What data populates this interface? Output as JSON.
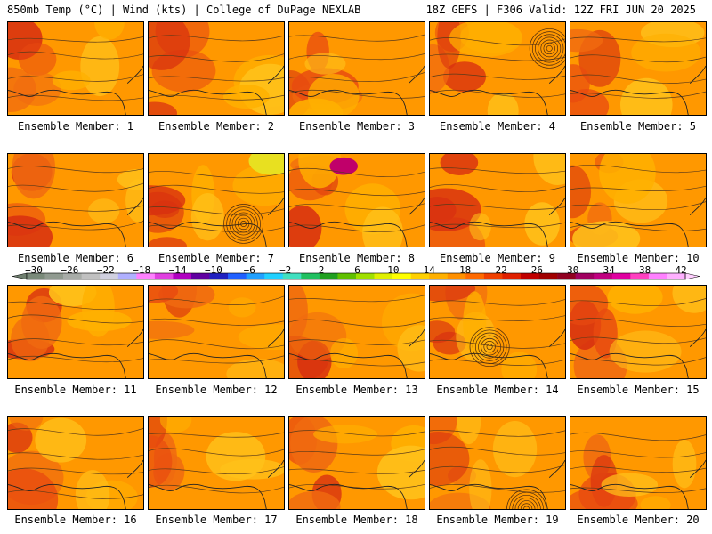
{
  "header": {
    "left": "850mb Temp (°C) | Wind (kts) | College of DuPage NEXLAB",
    "right": "18Z GEFS | F306 Valid: 12Z FRI JUN 20 2025"
  },
  "caption_prefix": "Ensemble Member: ",
  "members": [
    {
      "label": "Ensemble Member: 1",
      "number": 1,
      "low": null
    },
    {
      "label": "Ensemble Member: 2",
      "number": 2,
      "low": null
    },
    {
      "label": "Ensemble Member: 3",
      "number": 3,
      "low": null
    },
    {
      "label": "Ensemble Member: 4",
      "number": 4,
      "low": "north-east"
    },
    {
      "label": "Ensemble Member: 5",
      "number": 5,
      "low": null
    },
    {
      "label": "Ensemble Member: 6",
      "number": 6,
      "low": null
    },
    {
      "label": "Ensemble Member: 7",
      "number": 7,
      "low": "gulf"
    },
    {
      "label": "Ensemble Member: 8",
      "number": 8,
      "low": null
    },
    {
      "label": "Ensemble Member: 9",
      "number": 9,
      "low": null
    },
    {
      "label": "Ensemble Member: 10",
      "number": 10,
      "low": null
    },
    {
      "label": "Ensemble Member: 11",
      "number": 11,
      "low": null
    },
    {
      "label": "Ensemble Member: 12",
      "number": 12,
      "low": null
    },
    {
      "label": "Ensemble Member: 13",
      "number": 13,
      "low": null
    },
    {
      "label": "Ensemble Member: 14",
      "number": 14,
      "low": "central"
    },
    {
      "label": "Ensemble Member: 15",
      "number": 15,
      "low": null
    },
    {
      "label": "Ensemble Member: 16",
      "number": 16,
      "low": null
    },
    {
      "label": "Ensemble Member: 17",
      "number": 17,
      "low": null
    },
    {
      "label": "Ensemble Member: 18",
      "number": 18,
      "low": null
    },
    {
      "label": "Ensemble Member: 19",
      "number": 19,
      "low": "gulf-south"
    },
    {
      "label": "Ensemble Member: 20",
      "number": 20,
      "low": null
    }
  ],
  "colorbar": {
    "labels": [
      "−30",
      "−26",
      "−22",
      "−18",
      "−14",
      "−10",
      "−6",
      "−2",
      "2",
      "6",
      "10",
      "14",
      "18",
      "22",
      "26",
      "30",
      "34",
      "38",
      "42"
    ],
    "colors": [
      "#7a8a7a",
      "#909a90",
      "#a8aca8",
      "#c0c0c0",
      "#d0d0e0",
      "#b0b0ff",
      "#ff80ff",
      "#e040e0",
      "#b000c0",
      "#6000a0",
      "#2020c0",
      "#2060ff",
      "#20a0ff",
      "#20d0ff",
      "#40e0c0",
      "#20c060",
      "#20a020",
      "#60c000",
      "#a0e000",
      "#e0f000",
      "#ffff00",
      "#ffd000",
      "#ffb000",
      "#ff9000",
      "#ff6a00",
      "#f04000",
      "#e02000",
      "#c00000",
      "#a00000",
      "#900020",
      "#a00060",
      "#c00080",
      "#e000a0",
      "#ff40c0",
      "#ff80ff",
      "#ffb0ff"
    ]
  }
}
